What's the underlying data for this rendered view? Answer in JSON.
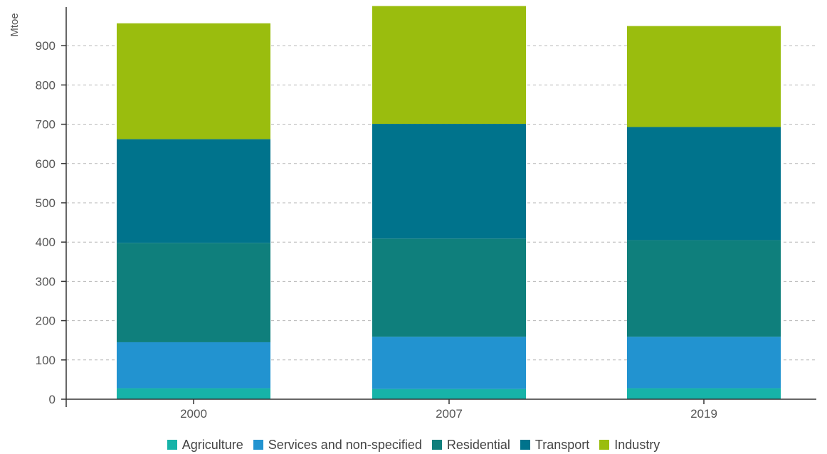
{
  "chart_data": {
    "type": "bar",
    "stacked": true,
    "title": "",
    "xlabel": "",
    "ylabel": "Mtoe",
    "ylim": [
      0,
      1000
    ],
    "yticks": [
      0,
      100,
      200,
      300,
      400,
      500,
      600,
      700,
      800,
      900
    ],
    "grid": true,
    "legend_position": "bottom",
    "categories": [
      "2000",
      "2007",
      "2019"
    ],
    "series": [
      {
        "name": "Agriculture",
        "color": "#17b3a8",
        "values": [
          28,
          26,
          28
        ]
      },
      {
        "name": "Services and non-specified",
        "color": "#2293d0",
        "values": [
          117,
          133,
          131
        ]
      },
      {
        "name": "Residential",
        "color": "#0f7f7c",
        "values": [
          253,
          250,
          246
        ]
      },
      {
        "name": "Transport",
        "color": "#00738c",
        "values": [
          264,
          292,
          288
        ]
      },
      {
        "name": "Industry",
        "color": "#9abd0e",
        "values": [
          295,
          300,
          257
        ]
      }
    ]
  }
}
